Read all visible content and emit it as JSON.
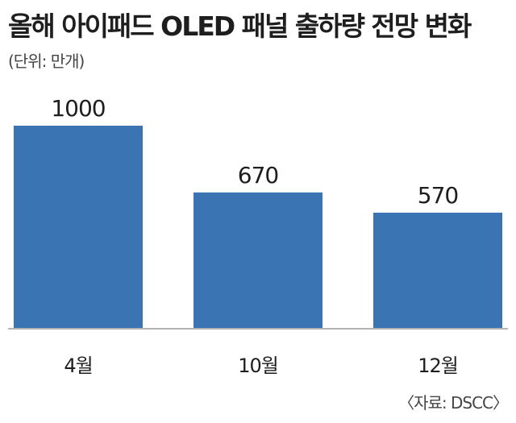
{
  "title": "올해 아이패드 OLED 패널 출하량 전망 변화",
  "unit_label": "(단위: 만개)",
  "source_label": "〈자료: DSCC〉",
  "colors": {
    "bar": "#3b74b3",
    "axis": "#9a9a9a"
  },
  "chart_data": {
    "type": "bar",
    "title": "올해 아이패드 OLED 패널 출하량 전망 변화",
    "categories": [
      "4월",
      "10월",
      "12월"
    ],
    "values": [
      1000,
      670,
      570
    ],
    "ylim": [
      0,
      1000
    ],
    "grid": false,
    "legend": "none"
  }
}
